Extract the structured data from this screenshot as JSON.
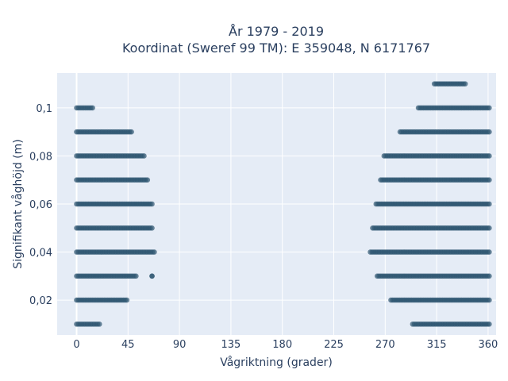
{
  "chart_data": {
    "type": "scatter",
    "title_line1": "År 1979 - 2019",
    "title_line2": "Koordinat (Sweref 99 TM): E 359048, N 6171767",
    "xlabel": "Vågriktning (grader)",
    "ylabel": "Signifikant våghöjd (m)",
    "xlim": [
      -17,
      367
    ],
    "ylim": [
      0.0055,
      0.1145
    ],
    "x_ticks": [
      0,
      45,
      90,
      135,
      180,
      225,
      270,
      315,
      360
    ],
    "y_ticks": [
      0.02,
      0.04,
      0.06,
      0.08,
      0.1
    ],
    "y_tick_labels": [
      "0,02",
      "0,04",
      "0,06",
      "0,08",
      "0,1"
    ],
    "grid": true,
    "marker_color": "#2e5570",
    "plot_background": "#e5ecf6",
    "bands": [
      {
        "y": 0.01,
        "segments": [
          [
            0,
            20
          ],
          [
            294,
            361
          ]
        ]
      },
      {
        "y": 0.02,
        "segments": [
          [
            0,
            44
          ],
          [
            275,
            361
          ]
        ]
      },
      {
        "y": 0.03,
        "segments": [
          [
            0,
            52
          ],
          [
            66,
            66
          ],
          [
            263,
            361
          ]
        ]
      },
      {
        "y": 0.04,
        "segments": [
          [
            0,
            68
          ],
          [
            257,
            361
          ]
        ]
      },
      {
        "y": 0.05,
        "segments": [
          [
            0,
            66
          ],
          [
            259,
            361
          ]
        ]
      },
      {
        "y": 0.06,
        "segments": [
          [
            0,
            66
          ],
          [
            262,
            361
          ]
        ]
      },
      {
        "y": 0.07,
        "segments": [
          [
            0,
            62
          ],
          [
            266,
            361
          ]
        ]
      },
      {
        "y": 0.08,
        "segments": [
          [
            0,
            59
          ],
          [
            269,
            361
          ]
        ]
      },
      {
        "y": 0.09,
        "segments": [
          [
            0,
            48
          ],
          [
            283,
            361
          ]
        ]
      },
      {
        "y": 0.1,
        "segments": [
          [
            0,
            14
          ],
          [
            299,
            361
          ]
        ]
      },
      {
        "y": 0.11,
        "segments": [
          [
            313,
            340
          ]
        ]
      }
    ]
  }
}
